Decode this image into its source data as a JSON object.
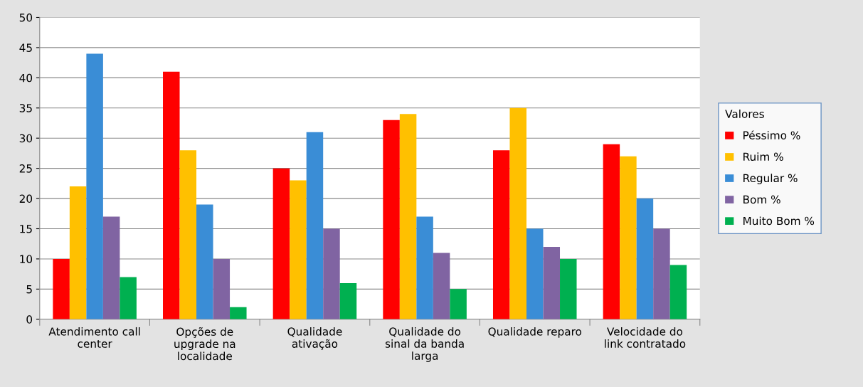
{
  "chart_data": {
    "type": "bar",
    "categories": [
      "Atendimento call\ncenter",
      "Opções de\nupgrade na\nlocalidade",
      "Qualidade\nativação",
      "Qualidade do\nsinal da banda\nlarga",
      "Qualidade reparo",
      "Velocidade do\nlink contratado"
    ],
    "series": [
      {
        "name": "Péssimo %",
        "color": "#ff0000",
        "values": [
          10,
          41,
          25,
          33,
          28,
          29
        ]
      },
      {
        "name": "Ruim %",
        "color": "#ffc000",
        "values": [
          22,
          28,
          23,
          34,
          35,
          27
        ]
      },
      {
        "name": "Regular %",
        "color": "#3a8dd6",
        "values": [
          44,
          19,
          31,
          17,
          15,
          20
        ]
      },
      {
        "name": "Bom %",
        "color": "#8064a2",
        "values": [
          17,
          10,
          15,
          11,
          12,
          15
        ]
      },
      {
        "name": "Muito Bom %",
        "color": "#00b050",
        "values": [
          7,
          2,
          6,
          5,
          10,
          9
        ]
      }
    ],
    "legend_title": "Valores",
    "ylim": [
      0,
      50
    ],
    "yticks": [
      0,
      5,
      10,
      15,
      20,
      25,
      30,
      35,
      40,
      45,
      50
    ],
    "grid": "y",
    "legend": "right"
  }
}
